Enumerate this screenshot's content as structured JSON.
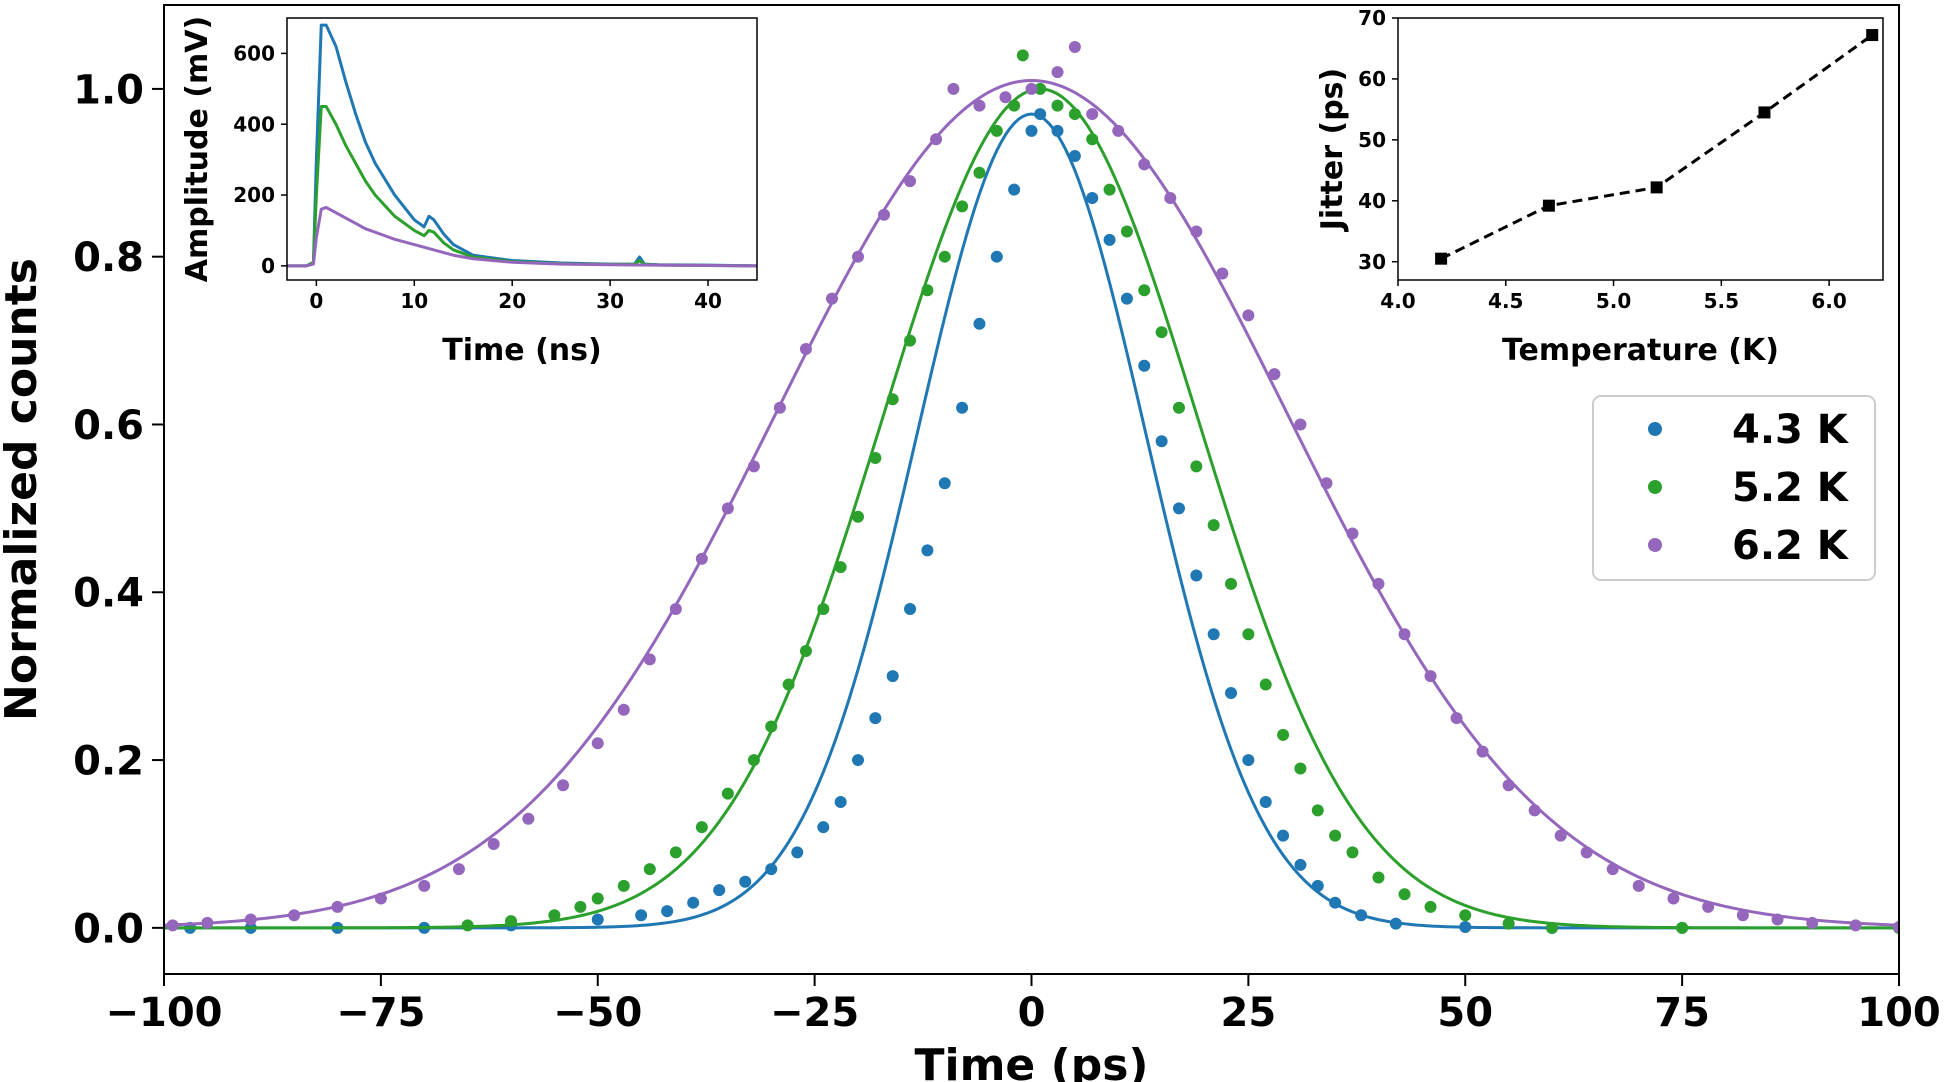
{
  "chart_data": [
    {
      "type": "scatter",
      "role": "main",
      "xlabel": "Time (ps)",
      "ylabel": "Normalized counts",
      "xlim": [
        -100,
        100
      ],
      "ylim": [
        -0.055,
        1.1
      ],
      "xticks": [
        -100,
        -75,
        -50,
        -25,
        0,
        25,
        50,
        75,
        100
      ],
      "xtick_labels": [
        "−100",
        "−75",
        "−50",
        "−25",
        "0",
        "25",
        "50",
        "75",
        "100"
      ],
      "yticks": [
        0.0,
        0.2,
        0.4,
        0.6,
        0.8,
        1.0
      ],
      "ytick_labels": [
        "0.0",
        "0.2",
        "0.4",
        "0.6",
        "0.8",
        "1.0"
      ],
      "legend_position": "right",
      "series": [
        {
          "name": "4.3 K",
          "color": "#1f77b4",
          "fit_center": 0,
          "fit_sigma": 13.2,
          "fit_amplitude": 0.97,
          "points": [
            [
              -97,
              0.0
            ],
            [
              -90,
              0.0
            ],
            [
              -80,
              0.0
            ],
            [
              -70,
              0.0
            ],
            [
              -60,
              0.003
            ],
            [
              -50,
              0.01
            ],
            [
              -45,
              0.015
            ],
            [
              -42,
              0.02
            ],
            [
              -39,
              0.03
            ],
            [
              -36,
              0.045
            ],
            [
              -33,
              0.055
            ],
            [
              -30,
              0.07
            ],
            [
              -27,
              0.09
            ],
            [
              -24,
              0.12
            ],
            [
              -22,
              0.15
            ],
            [
              -20,
              0.2
            ],
            [
              -18,
              0.25
            ],
            [
              -16,
              0.3
            ],
            [
              -14,
              0.38
            ],
            [
              -12,
              0.45
            ],
            [
              -10,
              0.53
            ],
            [
              -8,
              0.62
            ],
            [
              -6,
              0.72
            ],
            [
              -4,
              0.8
            ],
            [
              -2,
              0.88
            ],
            [
              0,
              0.95
            ],
            [
              1,
              0.97
            ],
            [
              3,
              0.95
            ],
            [
              5,
              0.92
            ],
            [
              7,
              0.87
            ],
            [
              9,
              0.82
            ],
            [
              11,
              0.75
            ],
            [
              13,
              0.67
            ],
            [
              15,
              0.58
            ],
            [
              17,
              0.5
            ],
            [
              19,
              0.42
            ],
            [
              21,
              0.35
            ],
            [
              23,
              0.28
            ],
            [
              25,
              0.2
            ],
            [
              27,
              0.15
            ],
            [
              29,
              0.11
            ],
            [
              31,
              0.075
            ],
            [
              33,
              0.05
            ],
            [
              35,
              0.03
            ],
            [
              38,
              0.015
            ],
            [
              42,
              0.005
            ],
            [
              50,
              0.001
            ],
            [
              60,
              0.0
            ],
            [
              75,
              0.0
            ],
            [
              100,
              0.0
            ]
          ]
        },
        {
          "name": "5.2 K",
          "color": "#2ca02c",
          "fit_center": 1,
          "fit_sigma": 18.2,
          "fit_amplitude": 1.0,
          "points": [
            [
              -65,
              0.003
            ],
            [
              -60,
              0.008
            ],
            [
              -55,
              0.015
            ],
            [
              -52,
              0.025
            ],
            [
              -50,
              0.035
            ],
            [
              -47,
              0.05
            ],
            [
              -44,
              0.07
            ],
            [
              -41,
              0.09
            ],
            [
              -38,
              0.12
            ],
            [
              -35,
              0.16
            ],
            [
              -32,
              0.2
            ],
            [
              -30,
              0.24
            ],
            [
              -28,
              0.29
            ],
            [
              -26,
              0.33
            ],
            [
              -24,
              0.38
            ],
            [
              -22,
              0.43
            ],
            [
              -20,
              0.49
            ],
            [
              -18,
              0.56
            ],
            [
              -16,
              0.63
            ],
            [
              -14,
              0.7
            ],
            [
              -12,
              0.76
            ],
            [
              -10,
              0.8
            ],
            [
              -8,
              0.86
            ],
            [
              -6,
              0.9
            ],
            [
              -4,
              0.95
            ],
            [
              -2,
              0.98
            ],
            [
              -1,
              1.04
            ],
            [
              1,
              1.0
            ],
            [
              3,
              0.98
            ],
            [
              5,
              0.97
            ],
            [
              7,
              0.94
            ],
            [
              9,
              0.88
            ],
            [
              11,
              0.83
            ],
            [
              13,
              0.76
            ],
            [
              15,
              0.71
            ],
            [
              17,
              0.62
            ],
            [
              19,
              0.55
            ],
            [
              21,
              0.48
            ],
            [
              23,
              0.41
            ],
            [
              25,
              0.35
            ],
            [
              27,
              0.29
            ],
            [
              29,
              0.23
            ],
            [
              31,
              0.19
            ],
            [
              33,
              0.14
            ],
            [
              35,
              0.11
            ],
            [
              37,
              0.09
            ],
            [
              40,
              0.06
            ],
            [
              43,
              0.04
            ],
            [
              46,
              0.025
            ],
            [
              50,
              0.015
            ],
            [
              55,
              0.005
            ],
            [
              60,
              0.0
            ],
            [
              75,
              0.0
            ],
            [
              100,
              0.0
            ]
          ]
        },
        {
          "name": "6.2 K",
          "color": "#9467bd",
          "fit_center": 0,
          "fit_sigma": 29.5,
          "fit_amplitude": 1.01,
          "points": [
            [
              -99,
              0.003
            ],
            [
              -95,
              0.006
            ],
            [
              -90,
              0.01
            ],
            [
              -85,
              0.015
            ],
            [
              -80,
              0.025
            ],
            [
              -75,
              0.035
            ],
            [
              -70,
              0.05
            ],
            [
              -66,
              0.07
            ],
            [
              -62,
              0.1
            ],
            [
              -58,
              0.13
            ],
            [
              -54,
              0.17
            ],
            [
              -50,
              0.22
            ],
            [
              -47,
              0.26
            ],
            [
              -44,
              0.32
            ],
            [
              -41,
              0.38
            ],
            [
              -38,
              0.44
            ],
            [
              -35,
              0.5
            ],
            [
              -32,
              0.55
            ],
            [
              -29,
              0.62
            ],
            [
              -26,
              0.69
            ],
            [
              -23,
              0.75
            ],
            [
              -20,
              0.8
            ],
            [
              -17,
              0.85
            ],
            [
              -14,
              0.89
            ],
            [
              -11,
              0.94
            ],
            [
              -9,
              1.0
            ],
            [
              -6,
              0.98
            ],
            [
              -3,
              0.99
            ],
            [
              0,
              1.0
            ],
            [
              3,
              1.02
            ],
            [
              5,
              1.05
            ],
            [
              7,
              0.97
            ],
            [
              10,
              0.95
            ],
            [
              13,
              0.91
            ],
            [
              16,
              0.87
            ],
            [
              19,
              0.83
            ],
            [
              22,
              0.78
            ],
            [
              25,
              0.73
            ],
            [
              28,
              0.66
            ],
            [
              31,
              0.6
            ],
            [
              34,
              0.53
            ],
            [
              37,
              0.47
            ],
            [
              40,
              0.41
            ],
            [
              43,
              0.35
            ],
            [
              46,
              0.3
            ],
            [
              49,
              0.25
            ],
            [
              52,
              0.21
            ],
            [
              55,
              0.17
            ],
            [
              58,
              0.14
            ],
            [
              61,
              0.11
            ],
            [
              64,
              0.09
            ],
            [
              67,
              0.07
            ],
            [
              70,
              0.05
            ],
            [
              74,
              0.035
            ],
            [
              78,
              0.025
            ],
            [
              82,
              0.015
            ],
            [
              86,
              0.01
            ],
            [
              90,
              0.006
            ],
            [
              95,
              0.003
            ],
            [
              100,
              0.001
            ]
          ]
        }
      ]
    },
    {
      "type": "line",
      "role": "inset-left",
      "xlabel": "Time (ns)",
      "ylabel": "Amplitude (mV)",
      "xlim": [
        -3,
        45
      ],
      "ylim": [
        -40,
        700
      ],
      "xticks": [
        0,
        10,
        20,
        30,
        40
      ],
      "xtick_labels": [
        "0",
        "10",
        "20",
        "30",
        "40"
      ],
      "yticks": [
        0,
        200,
        400,
        600
      ],
      "ytick_labels": [
        "0",
        "200",
        "400",
        "600"
      ],
      "series": [
        {
          "name": "4.3 K",
          "color": "#1f77b4",
          "x": [
            -3,
            -1,
            -0.3,
            0,
            0.5,
            1,
            2,
            3,
            4,
            5,
            6,
            8,
            10,
            11,
            11.5,
            12,
            13,
            14,
            16,
            20,
            25,
            30,
            32.5,
            33,
            33.5,
            35,
            40,
            45
          ],
          "y": [
            0,
            0,
            10,
            300,
            680,
            680,
            620,
            520,
            430,
            350,
            290,
            200,
            130,
            110,
            140,
            130,
            90,
            60,
            30,
            15,
            8,
            5,
            5,
            25,
            5,
            3,
            2,
            0
          ]
        },
        {
          "name": "5.2 K",
          "color": "#2ca02c",
          "x": [
            -3,
            -1,
            -0.3,
            0,
            0.5,
            1,
            2,
            3,
            4,
            5,
            6,
            8,
            10,
            11,
            11.5,
            12,
            13,
            14,
            16,
            20,
            25,
            30,
            32.5,
            33,
            33.5,
            35,
            40,
            45
          ],
          "y": [
            0,
            0,
            10,
            200,
            450,
            450,
            400,
            340,
            290,
            240,
            200,
            140,
            100,
            85,
            100,
            95,
            65,
            45,
            25,
            12,
            6,
            4,
            4,
            15,
            4,
            2,
            1,
            0
          ]
        },
        {
          "name": "6.2 K",
          "color": "#9467bd",
          "x": [
            -3,
            -1,
            -0.3,
            0,
            0.5,
            1,
            2,
            3,
            4,
            5,
            6,
            8,
            10,
            12,
            14,
            16,
            20,
            25,
            30,
            35,
            40,
            45
          ],
          "y": [
            0,
            0,
            5,
            80,
            160,
            165,
            150,
            135,
            120,
            105,
            95,
            75,
            60,
            45,
            30,
            20,
            10,
            5,
            3,
            2,
            1,
            0
          ]
        }
      ]
    },
    {
      "type": "line",
      "role": "inset-right",
      "xlabel": "Temperature (K)",
      "ylabel": "Jitter (ps)",
      "xlim": [
        4.0,
        6.25
      ],
      "ylim": [
        27,
        70
      ],
      "xticks": [
        4.0,
        4.5,
        5.0,
        5.5,
        6.0
      ],
      "xtick_labels": [
        "4.0",
        "4.5",
        "5.0",
        "5.5",
        "6.0"
      ],
      "yticks": [
        30,
        40,
        50,
        60,
        70
      ],
      "ytick_labels": [
        "30",
        "40",
        "50",
        "60",
        "70"
      ],
      "series": [
        {
          "name": "Jitter",
          "color": "#000000",
          "x": [
            4.2,
            4.7,
            5.2,
            5.7,
            6.2
          ],
          "y": [
            30.5,
            39.2,
            42.2,
            54.5,
            67.2
          ]
        }
      ]
    }
  ]
}
